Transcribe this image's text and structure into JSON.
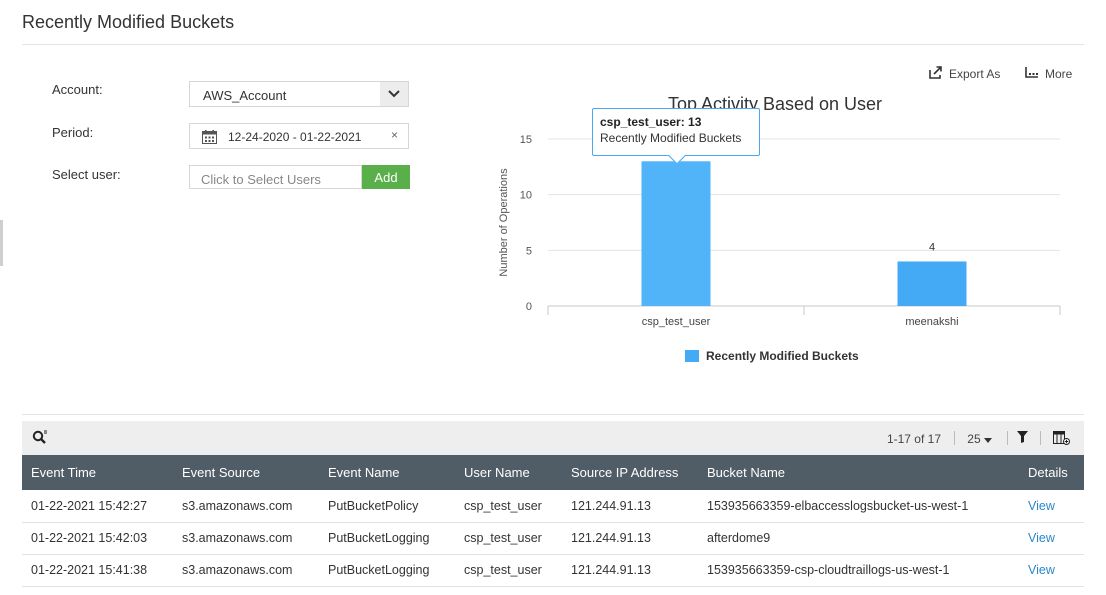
{
  "page": {
    "title": "Recently Modified Buckets"
  },
  "form": {
    "account_label": "Account:",
    "account_value": "AWS_Account",
    "period_label": "Period:",
    "period_value": "12-24-2020 - 01-22-2021",
    "period_clear": "×",
    "user_label": "Select user:",
    "user_placeholder": "Click to Select Users",
    "add_label": "Add"
  },
  "toolbar": {
    "export_label": "Export As",
    "more_label": "More"
  },
  "tooltip": {
    "title": "csp_test_user: 13",
    "subtitle": "Recently Modified Buckets"
  },
  "chart_data": {
    "type": "bar",
    "title": "Top Activity Based on User",
    "xlabel": "",
    "ylabel": "Number of Operations",
    "categories": [
      "csp_test_user",
      "meenakshi"
    ],
    "series": [
      {
        "name": "Recently Modified Buckets",
        "values": [
          13,
          4
        ]
      }
    ],
    "ylim": [
      0,
      15
    ],
    "yticks": [
      0,
      5,
      10,
      15
    ],
    "data_labels": [
      "13",
      "4"
    ],
    "grid": true,
    "legend": "bottom",
    "colors": {
      "bar": "#44aaf6",
      "bar_hover": "#52b4f8"
    }
  },
  "table": {
    "pager": "1-17 of 17",
    "per_page": "25",
    "columns": [
      "Event Time",
      "Event Source",
      "Event Name",
      "User Name",
      "Source IP Address",
      "Bucket Name",
      "Details"
    ],
    "rows": [
      [
        "01-22-2021 15:42:27",
        "s3.amazonaws.com",
        "PutBucketPolicy",
        "csp_test_user",
        "121.244.91.13",
        "153935663359-elbaccesslogsbucket-us-west-1",
        "View"
      ],
      [
        "01-22-2021 15:42:03",
        "s3.amazonaws.com",
        "PutBucketLogging",
        "csp_test_user",
        "121.244.91.13",
        "afterdome9",
        "View"
      ],
      [
        "01-22-2021 15:41:38",
        "s3.amazonaws.com",
        "PutBucketLogging",
        "csp_test_user",
        "121.244.91.13",
        "153935663359-csp-cloudtraillogs-us-west-1",
        "View"
      ]
    ]
  },
  "colors": {
    "accent_green": "#59b04b",
    "header_dark": "#515d66",
    "link_blue": "#2b87c8",
    "tooltip_border": "#4aa7f1"
  }
}
